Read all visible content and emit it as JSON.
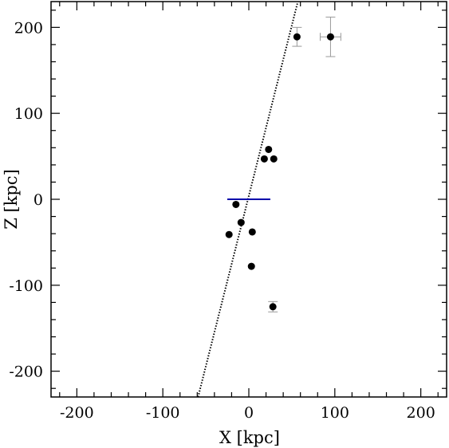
{
  "chart_data": {
    "type": "scatter",
    "title": "",
    "xlabel": "X [kpc]",
    "ylabel": "Z [kpc]",
    "xlim": [
      -230,
      230
    ],
    "ylim": [
      -230,
      230
    ],
    "x_ticks": [
      "-200",
      "-100",
      "0",
      "100",
      "200"
    ],
    "y_ticks": [
      "-200",
      "-100",
      "0",
      "100",
      "200"
    ],
    "x_tick_values": [
      -200,
      -100,
      0,
      100,
      200
    ],
    "y_tick_values": [
      -200,
      -100,
      0,
      100,
      200
    ],
    "grid": false,
    "series": [
      {
        "values": [
          {
            "x": 56,
            "y": 189,
            "xerr": 0,
            "yerr": 11
          },
          {
            "x": 95,
            "y": 189,
            "xerr": 12,
            "yerr": 23
          },
          {
            "x": 23,
            "y": 58,
            "xerr": 0,
            "yerr": 0
          },
          {
            "x": 18,
            "y": 47,
            "xerr": 0,
            "yerr": 0
          },
          {
            "x": 29,
            "y": 47,
            "xerr": 0,
            "yerr": 0
          },
          {
            "x": -15,
            "y": -6,
            "xerr": 0,
            "yerr": 0
          },
          {
            "x": -9,
            "y": -27,
            "xerr": 0,
            "yerr": 0
          },
          {
            "x": -23,
            "y": -41,
            "xerr": 0,
            "yerr": 0
          },
          {
            "x": 4,
            "y": -38,
            "xerr": 0,
            "yerr": 0
          },
          {
            "x": 3,
            "y": -78,
            "xerr": 0,
            "yerr": 0
          },
          {
            "x": 28,
            "y": -125,
            "xerr": 0,
            "yerr": 6
          }
        ],
        "color": "#000000"
      }
    ],
    "lines": [
      {
        "style": "dotted",
        "color": "#000000",
        "points": [
          {
            "x": -59,
            "y": -230
          },
          {
            "x": 57,
            "y": 230
          }
        ]
      },
      {
        "style": "solid",
        "color": "#0000aa",
        "points": [
          {
            "x": -25,
            "y": 0
          },
          {
            "x": 25,
            "y": 0
          }
        ]
      }
    ]
  }
}
